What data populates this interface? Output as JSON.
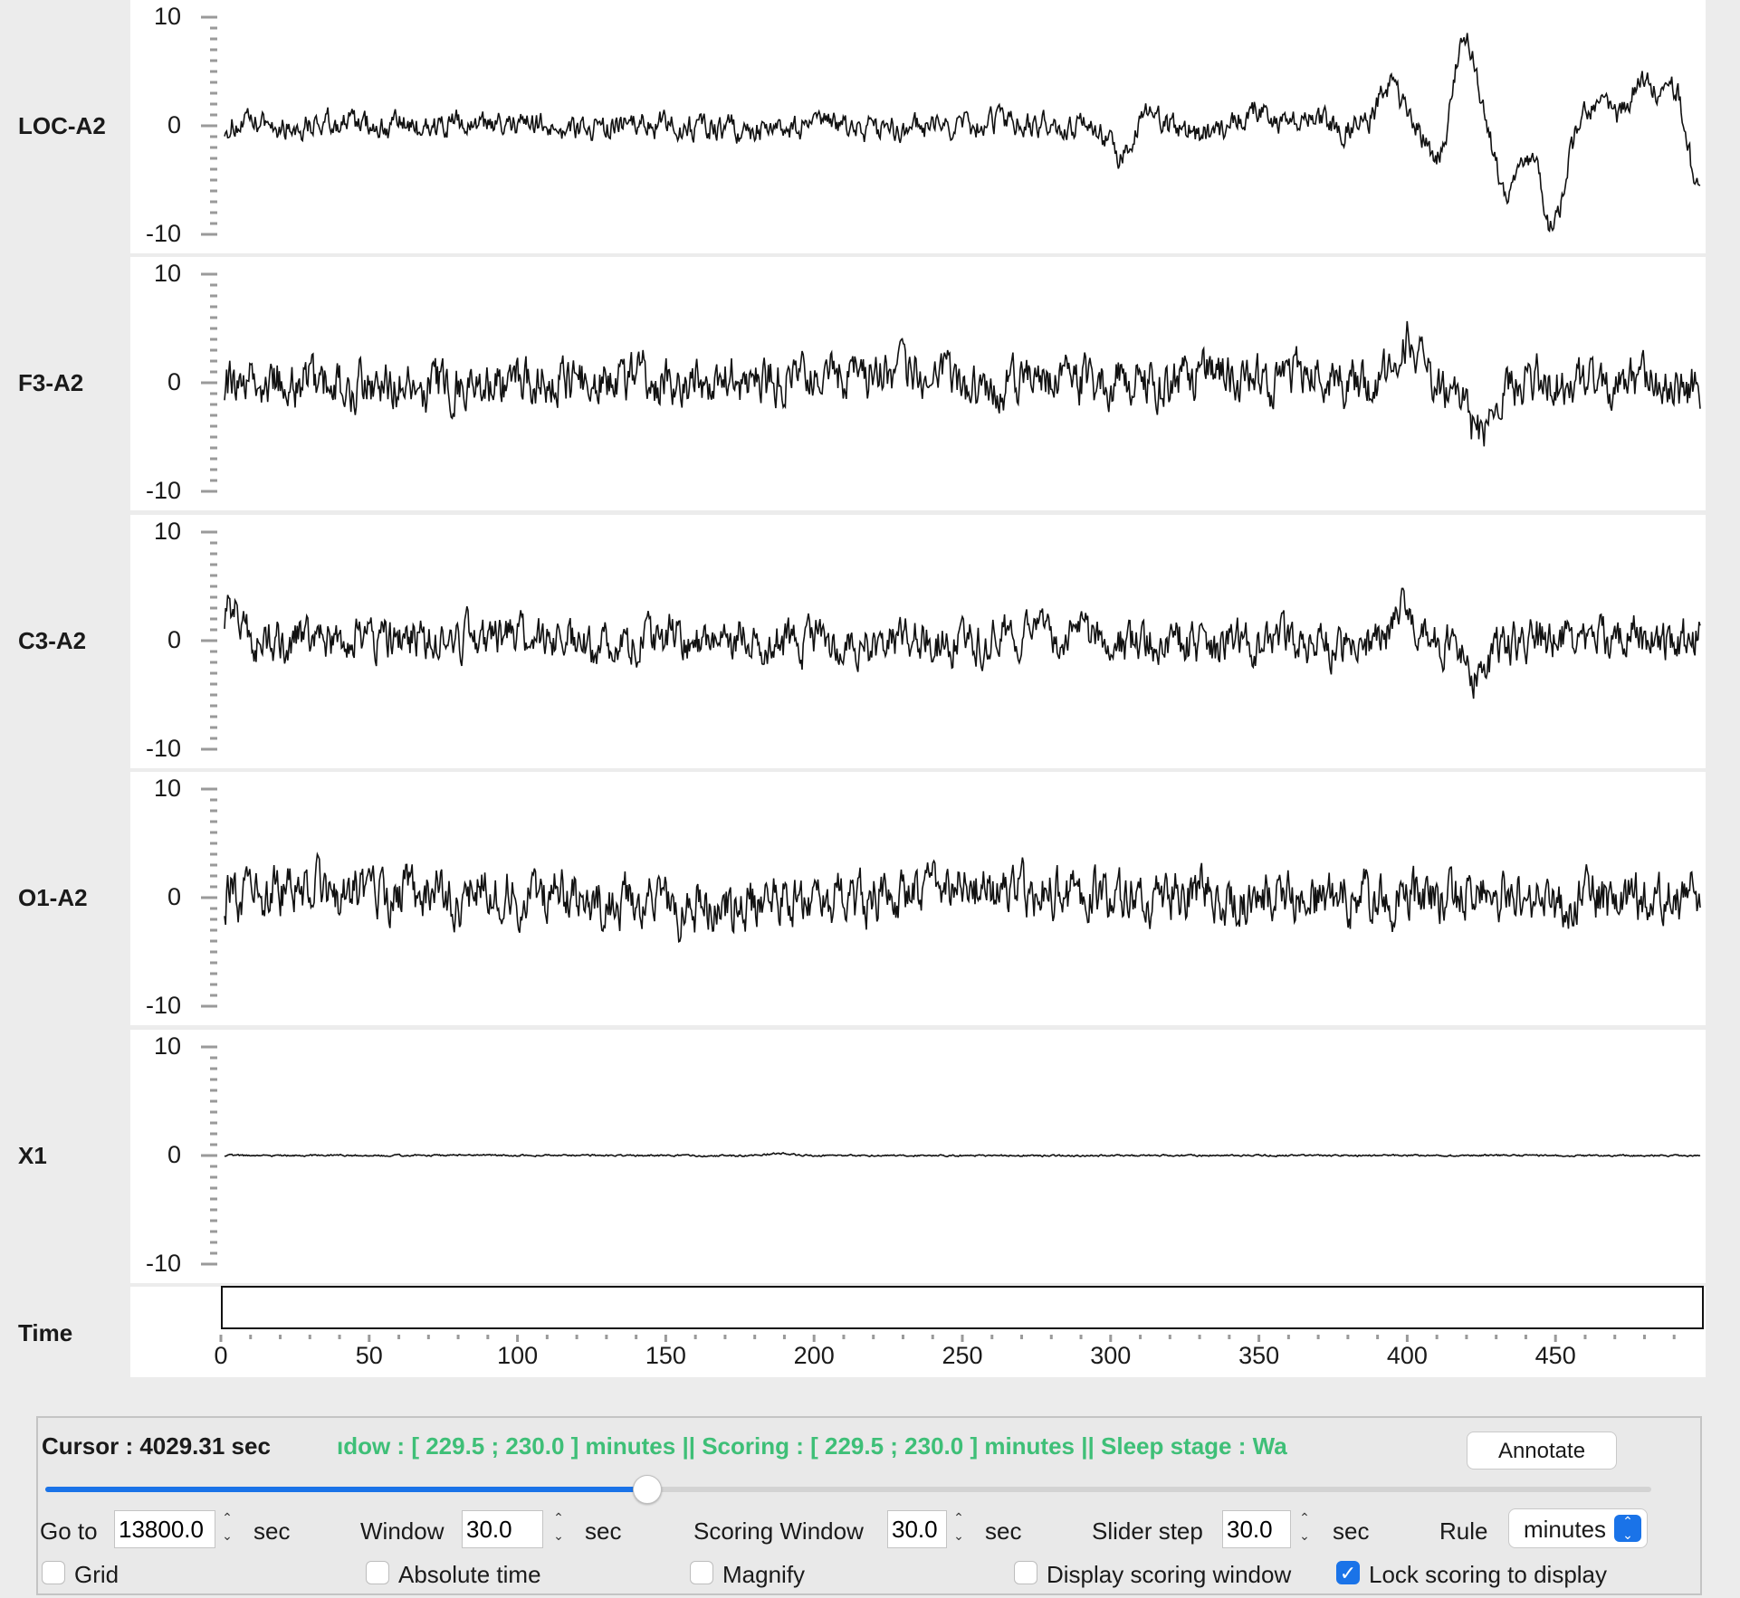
{
  "channels": [
    {
      "label": "LOC-A2",
      "yticks": [
        "10",
        "0",
        "-10"
      ]
    },
    {
      "label": "F3-A2",
      "yticks": [
        "10",
        "0",
        "-10"
      ]
    },
    {
      "label": "C3-A2",
      "yticks": [
        "10",
        "0",
        "-10"
      ]
    },
    {
      "label": "O1-A2",
      "yticks": [
        "10",
        "0",
        "-10"
      ]
    },
    {
      "label": "X1",
      "yticks": [
        "10",
        "0",
        "-10"
      ]
    }
  ],
  "time_axis": {
    "label": "Time",
    "ticks": [
      "0",
      "50",
      "100",
      "150",
      "200",
      "250",
      "300",
      "350",
      "400",
      "450"
    ],
    "marker_value": 229.5,
    "marker_color": "#e05050"
  },
  "chart_data": {
    "type": "line",
    "x_range": [
      0,
      500
    ],
    "ylim": [
      -10,
      10
    ],
    "series": [
      {
        "name": "LOC-A2",
        "amplitude": 1.2,
        "events": [
          [
            305,
            -5.2
          ],
          [
            308,
            3.0
          ],
          [
            330,
            -1.0
          ],
          [
            350,
            1.5
          ],
          [
            395,
            3.5
          ],
          [
            412,
            -3.5
          ],
          [
            420,
            8.8
          ],
          [
            435,
            -6.5
          ],
          [
            450,
            -9.5
          ],
          [
            465,
            2.0
          ],
          [
            480,
            4.0
          ],
          [
            490,
            2.0
          ],
          [
            495,
            6.0
          ],
          [
            498,
            -9.8
          ]
        ]
      },
      {
        "name": "F3-A2",
        "amplitude": 2.2,
        "events": [
          [
            400,
            3.5
          ],
          [
            425,
            -4.0
          ]
        ]
      },
      {
        "name": "C3-A2",
        "amplitude": 2.0,
        "events": [
          [
            2,
            3.0
          ],
          [
            400,
            2.5
          ],
          [
            425,
            -3.0
          ]
        ]
      },
      {
        "name": "O1-A2",
        "amplitude": 2.4,
        "events": [
          [
            150,
            3.0
          ],
          [
            152,
            -3.0
          ]
        ]
      },
      {
        "name": "X1",
        "amplitude": 0.08,
        "events": [
          [
            189,
            0.8
          ],
          [
            189.5,
            -0.6
          ]
        ]
      }
    ]
  },
  "status": {
    "cursor": "Cursor : 4029.31 sec",
    "info": "ıdow : [ 229.5 ; 230.0 ] minutes || Scoring : [ 229.5 ; 230.0 ] minutes || Sleep stage :    Wa"
  },
  "buttons": {
    "annotate": "Annotate"
  },
  "slider": {
    "position": 0.375
  },
  "controls": {
    "goto_label": "Go to",
    "goto_value": "13800.0",
    "goto_unit": "sec",
    "window_label": "Window",
    "window_value": "30.0",
    "window_unit": "sec",
    "scoring_label": "Scoring Window",
    "scoring_value": "30.0",
    "scoring_unit": "sec",
    "step_label": "Slider step",
    "step_value": "30.0",
    "step_unit": "sec",
    "rule_label": "Rule",
    "rule_value": "minutes"
  },
  "checkboxes": {
    "grid": {
      "label": "Grid",
      "checked": false
    },
    "absolute_time": {
      "label": "Absolute time",
      "checked": false
    },
    "magnify": {
      "label": "Magnify",
      "checked": false
    },
    "display_scoring": {
      "label": "Display scoring window",
      "checked": false
    },
    "lock_scoring": {
      "label": "Lock scoring to display",
      "checked": true
    }
  },
  "colors": {
    "accent": "#1a73e8",
    "status_green": "#3ebf77"
  }
}
